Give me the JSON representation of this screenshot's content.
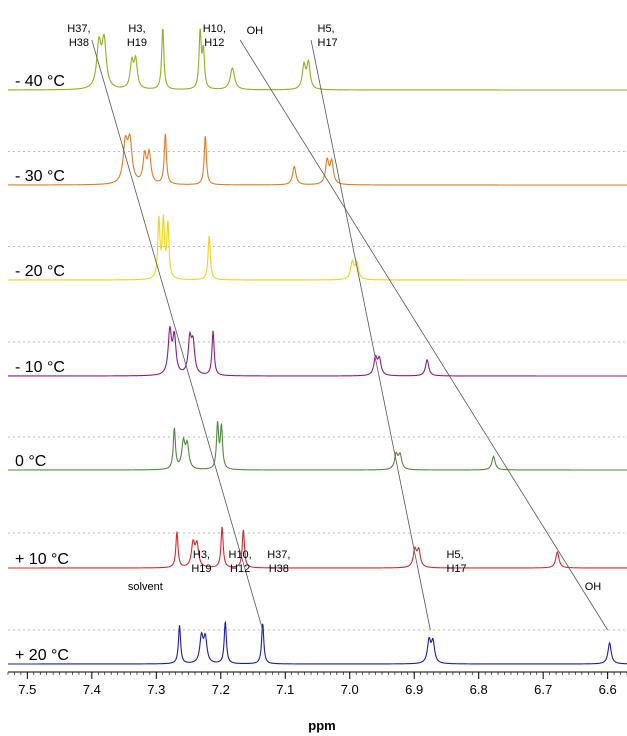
{
  "chart_data": {
    "type": "line",
    "title": "",
    "xlabel": "ppm",
    "ylabel": "",
    "xlim": [
      7.53,
      6.57
    ],
    "x_reversed": true,
    "x_ticks": [
      "7.5",
      "7.4",
      "7.3",
      "7.2",
      "7.1",
      "7.0",
      "6.9",
      "6.8",
      "6.7",
      "6.6"
    ],
    "grid": false,
    "series": [
      {
        "name": "- 40 °C",
        "color": "#8cb31e",
        "peaks": [
          {
            "ppm": 7.389,
            "height": 0.7,
            "width": 0.004
          },
          {
            "ppm": 7.381,
            "height": 0.75,
            "width": 0.004
          },
          {
            "ppm": 7.338,
            "height": 0.42,
            "width": 0.003
          },
          {
            "ppm": 7.332,
            "height": 0.45,
            "width": 0.003
          },
          {
            "ppm": 7.29,
            "height": 1.0,
            "width": 0.002
          },
          {
            "ppm": 7.232,
            "height": 0.92,
            "width": 0.002
          },
          {
            "ppm": 7.227,
            "height": 0.6,
            "width": 0.002
          },
          {
            "ppm": 7.182,
            "height": 0.35,
            "width": 0.004
          },
          {
            "ppm": 7.071,
            "height": 0.38,
            "width": 0.003
          },
          {
            "ppm": 7.064,
            "height": 0.42,
            "width": 0.003
          }
        ],
        "annotations": [
          {
            "text": [
              "H37,",
              "H38"
            ],
            "ppm": 7.42,
            "align": "middle"
          },
          {
            "text": [
              "H3,",
              "H19"
            ],
            "ppm": 7.33,
            "align": "middle"
          },
          {
            "text": [
              "H10,",
              "H12"
            ],
            "ppm": 7.21,
            "align": "middle"
          },
          {
            "text": [
              "OH"
            ],
            "ppm": 7.16,
            "align": "start"
          },
          {
            "text": [
              "H5,",
              "H17"
            ],
            "ppm": 7.05,
            "align": "start"
          }
        ]
      },
      {
        "name": "- 30 °C",
        "color": "#e07b25",
        "peaks": [
          {
            "ppm": 7.348,
            "height": 0.62,
            "width": 0.004
          },
          {
            "ppm": 7.341,
            "height": 0.65,
            "width": 0.004
          },
          {
            "ppm": 7.318,
            "height": 0.45,
            "width": 0.003
          },
          {
            "ppm": 7.311,
            "height": 0.48,
            "width": 0.003
          },
          {
            "ppm": 7.286,
            "height": 0.82,
            "width": 0.002
          },
          {
            "ppm": 7.224,
            "height": 0.8,
            "width": 0.002
          },
          {
            "ppm": 7.086,
            "height": 0.3,
            "width": 0.003
          },
          {
            "ppm": 7.035,
            "height": 0.38,
            "width": 0.003
          },
          {
            "ppm": 7.028,
            "height": 0.36,
            "width": 0.003
          }
        ],
        "annotations": []
      },
      {
        "name": "- 20 °C",
        "color": "#f2d21a",
        "peaks": [
          {
            "ppm": 7.296,
            "height": 0.95,
            "width": 0.002
          },
          {
            "ppm": 7.289,
            "height": 0.92,
            "width": 0.002
          },
          {
            "ppm": 7.282,
            "height": 0.88,
            "width": 0.002
          },
          {
            "ppm": 7.218,
            "height": 0.72,
            "width": 0.002
          },
          {
            "ppm": 6.996,
            "height": 0.28,
            "width": 0.003
          },
          {
            "ppm": 6.989,
            "height": 0.26,
            "width": 0.003
          }
        ],
        "annotations": []
      },
      {
        "name": "- 10 °C",
        "color": "#8b1a8b",
        "peaks": [
          {
            "ppm": 7.279,
            "height": 0.7,
            "width": 0.003
          },
          {
            "ppm": 7.272,
            "height": 0.6,
            "width": 0.003
          },
          {
            "ppm": 7.248,
            "height": 0.55,
            "width": 0.003
          },
          {
            "ppm": 7.243,
            "height": 0.48,
            "width": 0.003
          },
          {
            "ppm": 7.212,
            "height": 0.72,
            "width": 0.002
          },
          {
            "ppm": 6.96,
            "height": 0.28,
            "width": 0.003
          },
          {
            "ppm": 6.954,
            "height": 0.26,
            "width": 0.003
          },
          {
            "ppm": 6.88,
            "height": 0.26,
            "width": 0.003
          }
        ],
        "annotations": []
      },
      {
        "name": "0 °C",
        "color": "#4e8a3c",
        "peaks": [
          {
            "ppm": 7.272,
            "height": 0.66,
            "width": 0.002
          },
          {
            "ppm": 7.258,
            "height": 0.42,
            "width": 0.003
          },
          {
            "ppm": 7.252,
            "height": 0.38,
            "width": 0.003
          },
          {
            "ppm": 7.205,
            "height": 0.72,
            "width": 0.002
          },
          {
            "ppm": 7.199,
            "height": 0.68,
            "width": 0.002
          },
          {
            "ppm": 6.928,
            "height": 0.24,
            "width": 0.003
          },
          {
            "ppm": 6.922,
            "height": 0.23,
            "width": 0.003
          },
          {
            "ppm": 6.777,
            "height": 0.22,
            "width": 0.003
          }
        ],
        "annotations": []
      },
      {
        "name": "+ 10 °C",
        "color": "#d62a2a",
        "peaks": [
          {
            "ppm": 7.268,
            "height": 0.58,
            "width": 0.002
          },
          {
            "ppm": 7.243,
            "height": 0.38,
            "width": 0.003
          },
          {
            "ppm": 7.237,
            "height": 0.36,
            "width": 0.003
          },
          {
            "ppm": 7.198,
            "height": 0.66,
            "width": 0.002
          },
          {
            "ppm": 7.165,
            "height": 0.62,
            "width": 0.002
          },
          {
            "ppm": 6.899,
            "height": 0.28,
            "width": 0.003
          },
          {
            "ppm": 6.893,
            "height": 0.27,
            "width": 0.003
          },
          {
            "ppm": 6.678,
            "height": 0.26,
            "width": 0.003
          }
        ],
        "annotations": []
      },
      {
        "name": "+ 20 °C",
        "color": "#1a1ab4",
        "peaks": [
          {
            "ppm": 7.264,
            "height": 0.62,
            "width": 0.002
          },
          {
            "ppm": 7.23,
            "height": 0.42,
            "width": 0.003
          },
          {
            "ppm": 7.224,
            "height": 0.4,
            "width": 0.003
          },
          {
            "ppm": 7.193,
            "height": 0.68,
            "width": 0.002
          },
          {
            "ppm": 7.135,
            "height": 0.66,
            "width": 0.002
          },
          {
            "ppm": 6.877,
            "height": 0.36,
            "width": 0.003
          },
          {
            "ppm": 6.871,
            "height": 0.34,
            "width": 0.003
          },
          {
            "ppm": 6.597,
            "height": 0.34,
            "width": 0.003
          }
        ],
        "annotations": [
          {
            "text": [
              "solvent"
            ],
            "ppm": 7.29,
            "align": "end"
          },
          {
            "text": [
              "H3,",
              "H19"
            ],
            "ppm": 7.23,
            "align": "middle"
          },
          {
            "text": [
              "H10,",
              "H12"
            ],
            "ppm": 7.17,
            "align": "middle"
          },
          {
            "text": [
              "H37,",
              "H38"
            ],
            "ppm": 7.11,
            "align": "middle"
          },
          {
            "text": [
              "H5,",
              "H17"
            ],
            "ppm": 6.85,
            "align": "start"
          },
          {
            "text": [
              "OH"
            ],
            "ppm": 6.61,
            "align": "end"
          }
        ]
      }
    ],
    "tracking_lines": [
      {
        "from_ppm": 7.4,
        "to_ppm": 7.135
      },
      {
        "from_ppm": 7.17,
        "to_ppm": 6.6
      },
      {
        "from_ppm": 7.06,
        "to_ppm": 6.875
      }
    ]
  }
}
